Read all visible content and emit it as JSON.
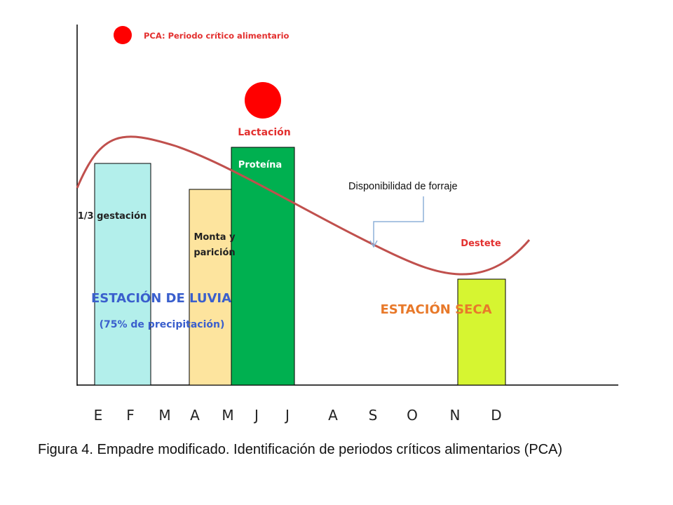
{
  "legend": {
    "marker_color": "#ff0000",
    "text": "PCA: Periodo crítico alimentario"
  },
  "critical_marker_color": "#ff0000",
  "months": [
    "E",
    "F",
    "M",
    "A",
    "M",
    "J",
    "J",
    "A",
    "S",
    "O",
    "N",
    "D"
  ],
  "bars": [
    {
      "id": "gestacion",
      "label": "1/3 gestación",
      "color": "#b3efeb"
    },
    {
      "id": "monta",
      "label_lines": [
        "Monta y",
        "parición"
      ],
      "color": "#fde49e"
    },
    {
      "id": "proteina",
      "label": "Proteína",
      "color": "#00b050"
    },
    {
      "id": "destete",
      "label": "Destete",
      "color": "#d6f531"
    }
  ],
  "labels": {
    "lactacion": "Lactación",
    "forage": "Disponibilidad de forraje",
    "rainy_season": "ESTACIÓN DE LUVIA",
    "rainy_note": "(75% de precipitación)",
    "dry_season": "ESTACIÓN SECA"
  },
  "colors": {
    "curve": "#c0504d",
    "rainy_text": "#3a5fcd",
    "dry_text": "#e8792a",
    "red_text": "#e3302f",
    "pointer": "#8db0d9"
  },
  "caption": "Figura 4. Empadre modificado. Identificación de periodos críticos alimentarios (PCA)"
}
